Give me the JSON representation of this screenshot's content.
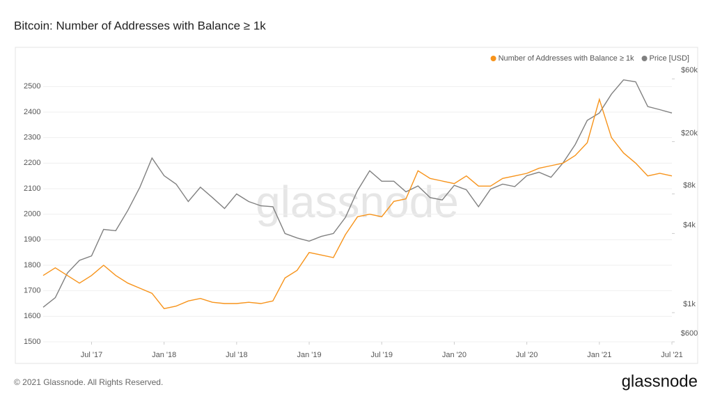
{
  "chart_data": {
    "type": "line",
    "title": "Bitcoin: Number of Addresses with Balance ≥ 1k",
    "watermark": "glassnode",
    "footer": "© 2021 Glassnode. All Rights Reserved.",
    "logo": "glassnode",
    "x": [
      "2017-03",
      "2017-04",
      "2017-05",
      "2017-06",
      "2017-07",
      "2017-08",
      "2017-09",
      "2017-10",
      "2017-11",
      "2017-12",
      "2018-01",
      "2018-02",
      "2018-03",
      "2018-04",
      "2018-05",
      "2018-06",
      "2018-07",
      "2018-08",
      "2018-09",
      "2018-10",
      "2018-11",
      "2018-12",
      "2019-01",
      "2019-02",
      "2019-03",
      "2019-04",
      "2019-05",
      "2019-06",
      "2019-07",
      "2019-08",
      "2019-09",
      "2019-10",
      "2019-11",
      "2019-12",
      "2020-01",
      "2020-02",
      "2020-03",
      "2020-04",
      "2020-05",
      "2020-06",
      "2020-07",
      "2020-08",
      "2020-09",
      "2020-10",
      "2020-11",
      "2020-12",
      "2021-01",
      "2021-02",
      "2021-03",
      "2021-04",
      "2021-05",
      "2021-06",
      "2021-07"
    ],
    "xlim": [
      "2017-03",
      "2021-07"
    ],
    "xticks": [
      {
        "value": "2017-07",
        "label": "Jul '17"
      },
      {
        "value": "2018-01",
        "label": "Jan '18"
      },
      {
        "value": "2018-07",
        "label": "Jul '18"
      },
      {
        "value": "2019-01",
        "label": "Jan '19"
      },
      {
        "value": "2019-07",
        "label": "Jul '19"
      },
      {
        "value": "2020-01",
        "label": "Jan '20"
      },
      {
        "value": "2020-07",
        "label": "Jul '20"
      },
      {
        "value": "2021-01",
        "label": "Jan '21"
      },
      {
        "value": "2021-07",
        "label": "Jul '21"
      }
    ],
    "ylim": [
      1500,
      2580
    ],
    "yticks": [
      1500,
      1600,
      1700,
      1800,
      1900,
      2000,
      2100,
      2200,
      2300,
      2400,
      2500
    ],
    "y2lim": [
      600,
      75000
    ],
    "y2log": true,
    "y2ticks": [
      {
        "value": 600,
        "label": "$600"
      },
      {
        "value": 1000,
        "label": "$1k"
      },
      {
        "value": 4000,
        "label": "$4k"
      },
      {
        "value": 8000,
        "label": "$8k"
      },
      {
        "value": 20000,
        "label": "$20k"
      },
      {
        "value": 60000,
        "label": "$60k"
      }
    ],
    "grid": true,
    "legend": "top-right",
    "series": [
      {
        "name": "Number of Addresses with Balance ≥ 1k",
        "color": "#f7931a",
        "values": [
          1760,
          1790,
          1760,
          1730,
          1760,
          1800,
          1760,
          1730,
          1710,
          1690,
          1630,
          1640,
          1660,
          1670,
          1655,
          1650,
          1650,
          1655,
          1650,
          1660,
          1750,
          1780,
          1850,
          1840,
          1830,
          1920,
          1990,
          2000,
          1990,
          2050,
          2060,
          2170,
          2140,
          2130,
          2120,
          2150,
          2110,
          2110,
          2140,
          2150,
          2160,
          2180,
          2190,
          2200,
          2230,
          2280,
          2450,
          2300,
          2240,
          2200,
          2150,
          2160,
          2150
        ]
      },
      {
        "name": "Price [USD]",
        "color": "#808080",
        "axis": "y2",
        "values": [
          1100,
          1300,
          2000,
          2500,
          2700,
          4300,
          4200,
          6000,
          9000,
          15000,
          11000,
          9500,
          7000,
          9000,
          7500,
          6200,
          8000,
          7000,
          6500,
          6400,
          4000,
          3700,
          3500,
          3800,
          4000,
          5300,
          8500,
          12000,
          10000,
          10000,
          8300,
          9200,
          7500,
          7200,
          9300,
          8600,
          6400,
          8700,
          9500,
          9100,
          11000,
          11700,
          10700,
          13800,
          19000,
          29000,
          33000,
          46000,
          59000,
          57000,
          37000,
          35000,
          33000
        ]
      }
    ]
  }
}
